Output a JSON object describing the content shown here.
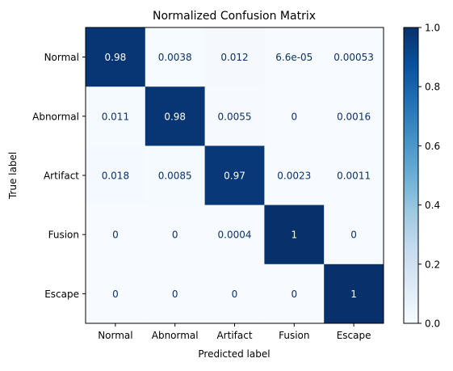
{
  "chart_data": {
    "type": "heatmap",
    "title": "Normalized Confusion Matrix",
    "xlabel": "Predicted label",
    "ylabel": "True label",
    "x_categories": [
      "Normal",
      "Abnormal",
      "Artifact",
      "Fusion",
      "Escape"
    ],
    "y_categories": [
      "Normal",
      "Abnormal",
      "Artifact",
      "Fusion",
      "Escape"
    ],
    "values": [
      [
        0.98,
        0.0038,
        0.012,
        6.6e-05,
        0.00053
      ],
      [
        0.011,
        0.98,
        0.0055,
        0,
        0.0016
      ],
      [
        0.018,
        0.0085,
        0.97,
        0.0023,
        0.0011
      ],
      [
        0,
        0,
        0.0004,
        1,
        0
      ],
      [
        0,
        0,
        0,
        0,
        1
      ]
    ],
    "cell_labels": [
      [
        "0.98",
        "0.0038",
        "0.012",
        "6.6e-05",
        "0.00053"
      ],
      [
        "0.011",
        "0.98",
        "0.0055",
        "0",
        "0.0016"
      ],
      [
        "0.018",
        "0.0085",
        "0.97",
        "0.0023",
        "0.0011"
      ],
      [
        "0",
        "0",
        "0.0004",
        "1",
        "0"
      ],
      [
        "0",
        "0",
        "0",
        "0",
        "1"
      ]
    ],
    "colormap": "Blues",
    "colorbar": {
      "range": [
        0,
        1
      ],
      "ticks": [
        0.0,
        0.2,
        0.4,
        0.6,
        0.8,
        1.0
      ],
      "tick_labels": [
        "0.0",
        "0.2",
        "0.4",
        "0.6",
        "0.8",
        "1.0"
      ]
    },
    "label_colors": {
      "light_cell_text": "#08306b",
      "dark_cell_text": "#ffffff"
    }
  }
}
